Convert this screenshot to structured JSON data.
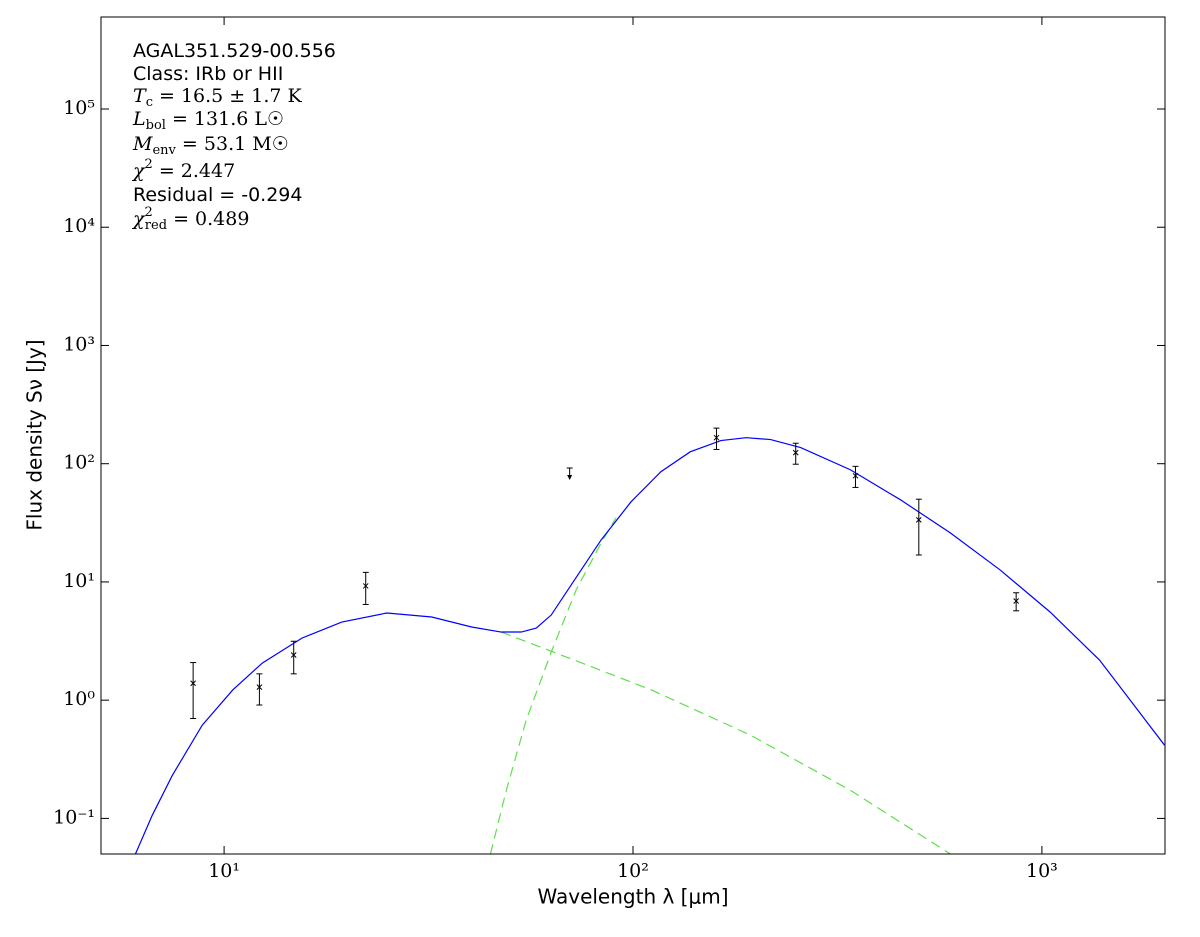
{
  "chart_data": {
    "type": "sed",
    "xlabel": "Wavelength λ [μm]",
    "ylabel": "Flux density Sν [Jy]",
    "xscale": "log",
    "yscale": "log",
    "xlim": [
      5,
      2000
    ],
    "ylim": [
      0.05,
      600000
    ],
    "xticks": [
      {
        "value": 10,
        "label": "10¹"
      },
      {
        "value": 100,
        "label": "10²"
      },
      {
        "value": 1000,
        "label": "10³"
      }
    ],
    "yticks": [
      {
        "value": 0.1,
        "label": "10⁻¹"
      },
      {
        "value": 1,
        "label": "10⁰"
      },
      {
        "value": 10,
        "label": "10¹"
      },
      {
        "value": 100,
        "label": "10²"
      },
      {
        "value": 1000,
        "label": "10³"
      },
      {
        "value": 10000,
        "label": "10⁴"
      },
      {
        "value": 100000,
        "label": "10⁵"
      }
    ],
    "annotations": [
      {
        "text": "AGAL351.529-00.556"
      },
      {
        "text": "Class: IRb or HII"
      },
      {
        "symbol": "T",
        "sub": "c",
        "rest": " = 16.5 ± 1.7 K"
      },
      {
        "symbol": "L",
        "sub": "bol",
        "rest": " = 131.6 L☉"
      },
      {
        "symbol": "M",
        "sub": "env",
        "rest": " = 53.1 M☉"
      },
      {
        "symbol": "χ",
        "sup": "2",
        "rest": " = 2.447"
      },
      {
        "text": "Residual = -0.294"
      },
      {
        "symbol": "χ",
        "sup": "2",
        "sub": "red",
        "rest": " = 0.489"
      }
    ],
    "points": {
      "color": "#000000",
      "x": [
        8.4,
        12.2,
        14.8,
        22.2,
        160,
        250,
        350,
        500,
        865
      ],
      "y": [
        1.39,
        1.29,
        2.41,
        9.25,
        166,
        124,
        79,
        33.5,
        6.9
      ],
      "yerr": [
        0.69,
        0.38,
        0.74,
        2.8,
        34,
        25,
        16,
        16.6,
        1.2
      ]
    },
    "upper_limits": {
      "color": "#000000",
      "x": [
        70
      ],
      "y": [
        92
      ]
    },
    "models": [
      {
        "color": "#5ee04a",
        "style": "dashed",
        "x": [
          44.8,
          49.0,
          54.8,
          63.1,
          72.6,
          83.6,
          90.9
        ],
        "y": [
          0.05,
          0.173,
          0.677,
          2.55,
          8.55,
          21.4,
          34.9
        ]
      },
      {
        "color": "#5ee04a",
        "style": "dashed",
        "x": [
          47.6,
          66.7,
          111,
          194,
          340,
          597
        ],
        "y": [
          3.77,
          2.41,
          1.22,
          0.505,
          0.173,
          0.05
        ]
      },
      {
        "color": "#0000ff",
        "style": "solid",
        "x": [
          6.07,
          6.67,
          7.47,
          8.84,
          10.5,
          12.4,
          15.5,
          19.4,
          25.0,
          32.2,
          40.3,
          47.6,
          53.3,
          58.0,
          63.1,
          70.6,
          83.6,
          98.9,
          117,
          138,
          164,
          189,
          217,
          257,
          340,
          451,
          597,
          791,
          1047,
          1384,
          1995
        ],
        "y": [
          0.05,
          0.106,
          0.231,
          0.614,
          1.22,
          2.06,
          3.35,
          4.58,
          5.46,
          5.05,
          4.16,
          3.77,
          3.77,
          4.07,
          5.25,
          9.44,
          22.7,
          47.6,
          85.5,
          126,
          157,
          166,
          160,
          137,
          88.9,
          49.5,
          26.0,
          12.6,
          5.57,
          2.18,
          0.416
        ]
      }
    ]
  }
}
